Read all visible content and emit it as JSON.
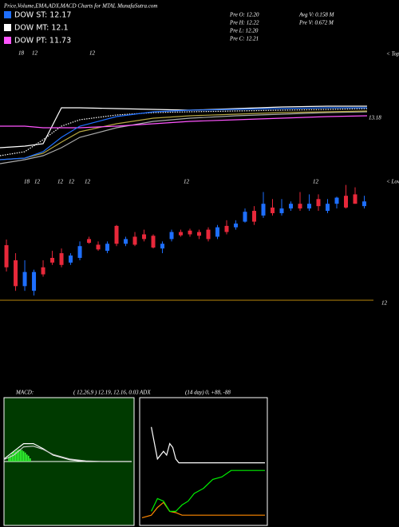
{
  "header": {
    "title": "Price,Volume,EMA,ADX,MACD Charts for MTAL MunafaSutra.com",
    "legend": [
      {
        "label": "DOW ST: 12.17",
        "color": "#1e6fff"
      },
      {
        "label": "DOW MT: 12.1",
        "color": "#ffffff"
      },
      {
        "label": "DOW PT: 11.73",
        "color": "#ff55ff"
      }
    ],
    "pre_stats": [
      "Pre  O: 12.20",
      "Pre  H: 12.22",
      "Pre  L: 12.20",
      "Pre  C: 12.21"
    ],
    "volume_stats": [
      "Avg V: 0.158  M",
      "Pre  V: 0.672  M"
    ]
  },
  "chart_data": [
    {
      "type": "line",
      "date_labels": [
        "18",
        "12",
        "12"
      ],
      "edge_label": "< Tops",
      "xlim": [
        -0.7,
        40
      ],
      "ylim": [
        12.5,
        13.5
      ],
      "yticks": [
        13.18
      ],
      "x": [
        -0.7,
        2,
        4,
        6,
        8,
        12,
        16,
        20,
        25,
        30,
        35,
        39.3
      ],
      "series": [
        {
          "color": "#ffffff",
          "values": [
            12.81,
            12.83,
            12.86,
            13.31,
            13.31,
            13.3,
            13.29,
            13.28,
            13.3,
            13.32,
            13.33,
            13.33
          ]
        },
        {
          "color": "#aaaaaa",
          "values": [
            12.61,
            12.66,
            12.71,
            12.81,
            12.94,
            13.06,
            13.14,
            13.18,
            13.21,
            13.23,
            13.25,
            13.26
          ]
        },
        {
          "color": "#b5a642",
          "values": [
            12.66,
            12.68,
            12.74,
            12.88,
            13.01,
            13.11,
            13.18,
            13.21,
            13.23,
            13.25,
            13.26,
            13.27
          ]
        },
        {
          "color": "#ffffff",
          "dash": true,
          "values": [
            12.71,
            12.76,
            12.91,
            13.08,
            13.16,
            13.22,
            13.25,
            13.26,
            13.27,
            13.28,
            13.29,
            13.3
          ]
        },
        {
          "color": "#ff55ff",
          "values": [
            13.08,
            13.08,
            13.06,
            13.06,
            13.06,
            13.08,
            13.11,
            13.14,
            13.16,
            13.18,
            13.2,
            13.21
          ]
        },
        {
          "color": "#1e6fff",
          "values": [
            12.66,
            12.68,
            12.76,
            12.94,
            13.08,
            13.2,
            13.26,
            13.28,
            13.29,
            13.3,
            13.31,
            13.31
          ]
        }
      ]
    },
    {
      "type": "candlestick",
      "date_labels": [
        "18",
        "12",
        "12",
        "12",
        "12",
        "12",
        "12"
      ],
      "edge_label": "< Lows",
      "xlim": [
        -0.7,
        40
      ],
      "ylim": [
        12.0,
        12.28
      ],
      "yticks": [
        12
      ],
      "grid_color": "#b8860b",
      "up_color": "#1e6fff",
      "down_color": "#e8283a",
      "open": [
        12.117,
        12.085,
        12.03,
        12.02,
        12.07,
        12.09,
        12.1,
        12.08,
        12.09,
        12.13,
        12.118,
        12.105,
        12.158,
        12.12,
        12.135,
        12.14,
        12.137,
        12.11,
        12.13,
        12.145,
        12.148,
        12.145,
        12.15,
        12.135,
        12.158,
        12.155,
        12.167,
        12.19,
        12.18,
        12.197,
        12.185,
        12.195,
        12.205,
        12.195,
        12.215,
        12.19,
        12.205,
        12.222,
        12.225,
        12.2
      ],
      "high": [
        12.129,
        12.1,
        12.085,
        12.065,
        12.085,
        12.105,
        12.11,
        12.1,
        12.125,
        12.135,
        12.125,
        12.125,
        12.16,
        12.135,
        12.145,
        12.15,
        12.14,
        12.125,
        12.15,
        12.15,
        12.152,
        12.15,
        12.155,
        12.16,
        12.17,
        12.17,
        12.195,
        12.2,
        12.23,
        12.215,
        12.215,
        12.21,
        12.23,
        12.225,
        12.225,
        12.215,
        12.22,
        12.245,
        12.24,
        12.222
      ],
      "low": [
        12.061,
        12.02,
        12.02,
        12.01,
        12.05,
        12.075,
        12.07,
        12.075,
        12.085,
        12.12,
        12.105,
        12.1,
        12.115,
        12.115,
        12.115,
        12.125,
        12.11,
        12.1,
        12.125,
        12.135,
        12.135,
        12.13,
        12.125,
        12.13,
        12.14,
        12.15,
        12.165,
        12.16,
        12.175,
        12.18,
        12.18,
        12.19,
        12.19,
        12.19,
        12.19,
        12.185,
        12.195,
        12.195,
        12.205,
        12.195
      ],
      "close": [
        12.07,
        12.03,
        12.06,
        12.06,
        12.055,
        12.08,
        12.075,
        12.095,
        12.115,
        12.122,
        12.108,
        12.12,
        12.12,
        12.13,
        12.118,
        12.13,
        12.112,
        12.12,
        12.145,
        12.138,
        12.14,
        12.137,
        12.13,
        12.155,
        12.145,
        12.163,
        12.188,
        12.167,
        12.205,
        12.185,
        12.195,
        12.205,
        12.195,
        12.205,
        12.2,
        12.205,
        12.218,
        12.197,
        12.205,
        12.21
      ]
    },
    {
      "type": "macd",
      "title": "MACD:",
      "params": "( 12,26,9 ) 12.19,  12.16,  0.03",
      "background": "#003a00",
      "xlim": [
        0,
        39
      ],
      "ylim": [
        -0.1,
        0.1
      ],
      "x": [
        0,
        3,
        6,
        9,
        12,
        15,
        20,
        25,
        30,
        39
      ],
      "series": [
        {
          "color": "#ffffff",
          "values": [
            0.004,
            0.016,
            0.028,
            0.028,
            0.02,
            0.01,
            0.003,
            0,
            0,
            0
          ]
        },
        {
          "color": "#cccccc",
          "values": [
            0.003,
            0.01,
            0.023,
            0.024,
            0.019,
            0.011,
            0.004,
            0.001,
            0,
            0
          ]
        }
      ],
      "histogram": {
        "color": "#33ff33",
        "x": [
          1.5,
          2,
          2.5,
          3,
          3.5,
          4,
          4.5,
          5,
          5.5,
          6,
          6.5,
          7,
          7.5,
          8
        ],
        "values": [
          0.008,
          0.01,
          0.013,
          0.015,
          0.016,
          0.018,
          0.019,
          0.019,
          0.018,
          0.016,
          0.014,
          0.011,
          0.009,
          0.005
        ]
      }
    },
    {
      "type": "adx",
      "title": "ADX",
      "params": "(14  day) 0,  +88,  -88",
      "background": "#000000",
      "xlim": [
        0,
        40
      ],
      "ylim": [
        0,
        100
      ],
      "series": [
        {
          "color": "#ff8800",
          "x": [
            0,
            3,
            5,
            7,
            9,
            11,
            13,
            40
          ],
          "values": [
            6,
            8,
            14,
            18,
            11,
            10,
            8,
            8
          ]
        },
        {
          "color": "#ffffff",
          "x": [
            3,
            5,
            7,
            8,
            9,
            10,
            11,
            12,
            14,
            40
          ],
          "values": [
            77,
            52,
            58,
            55,
            64,
            61,
            52,
            49,
            49,
            49
          ]
        },
        {
          "color": "#00ee00",
          "x": [
            3,
            5,
            7,
            9,
            11,
            13,
            15,
            17,
            20,
            23,
            26,
            29,
            32,
            40
          ],
          "values": [
            11,
            21,
            19,
            11,
            11,
            16,
            19,
            25,
            29,
            36,
            38,
            43,
            43,
            43
          ]
        }
      ]
    }
  ]
}
